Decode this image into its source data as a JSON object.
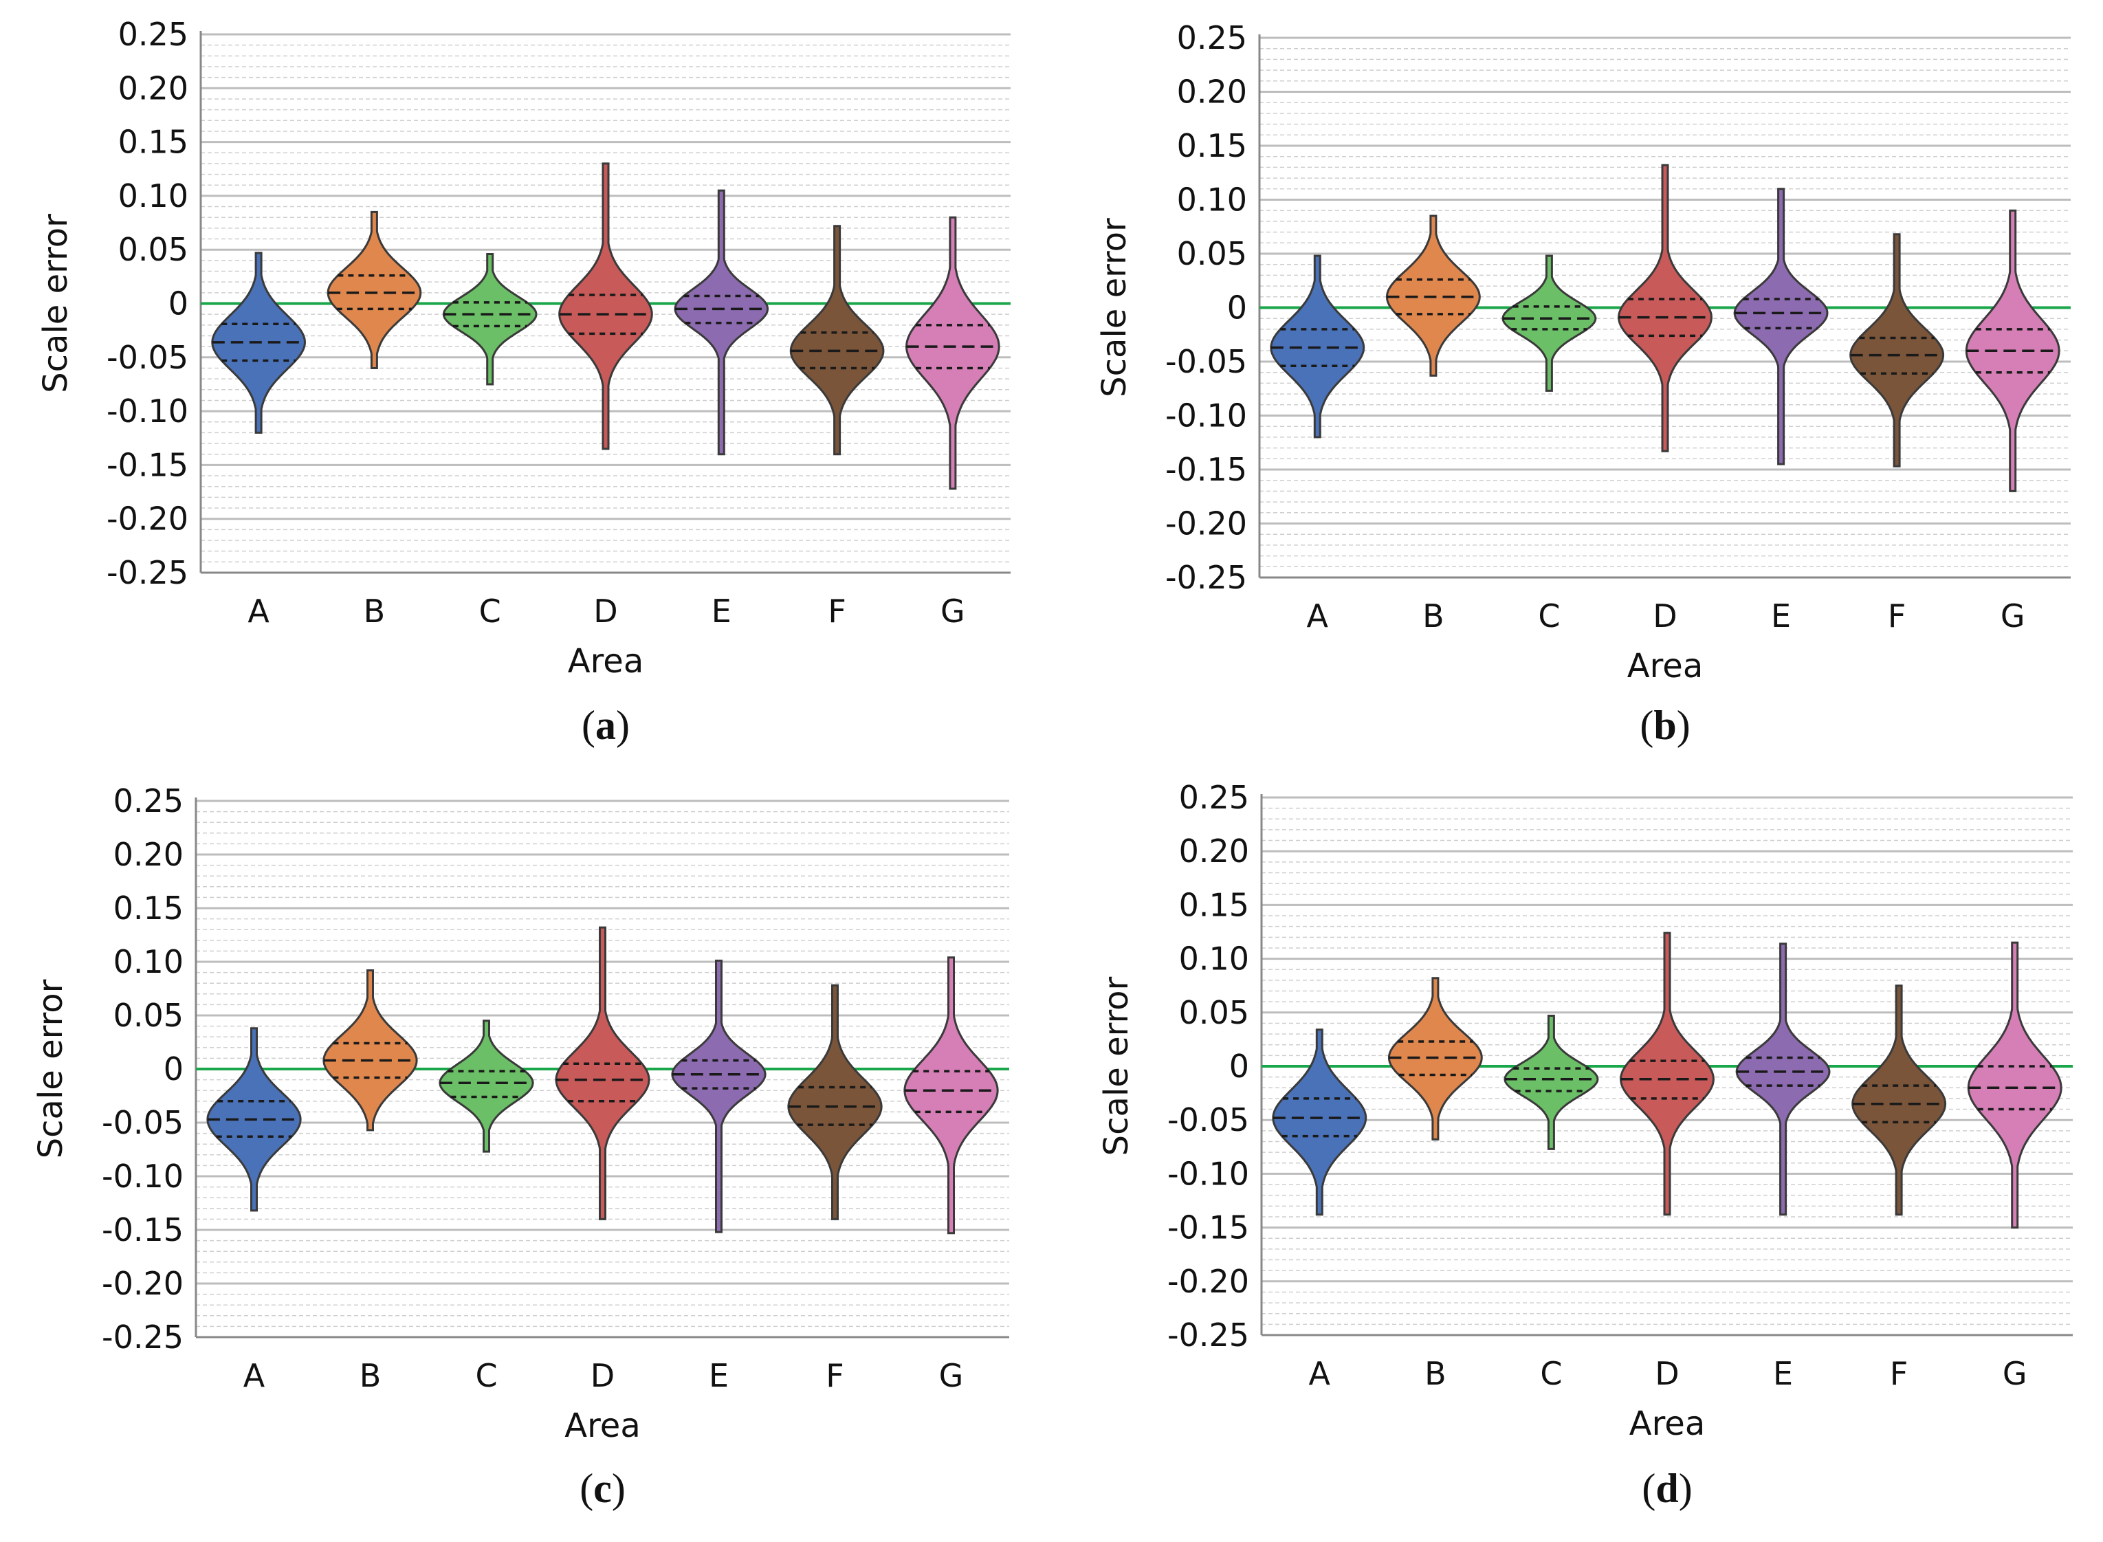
{
  "figure": {
    "zero_line_color": "#1aa64a",
    "colors": {
      "A": "#4a72b8",
      "B": "#e0874e",
      "C": "#6bbf66",
      "D": "#c85a5a",
      "E": "#8d6bb0",
      "F": "#7a553a",
      "G": "#d57fb6"
    }
  },
  "chart_data": [
    {
      "panel": "a",
      "panel_label": "a",
      "type": "violin",
      "xlabel": "Area",
      "ylabel": "Scale error",
      "ylim": [
        -0.25,
        0.25
      ],
      "yticks": [
        "0.25",
        "0.20",
        "0.15",
        "0.10",
        "0.05",
        "0",
        "-0.05",
        "-0.10",
        "-0.15",
        "-0.20",
        "-0.25"
      ],
      "categories": [
        "A",
        "B",
        "C",
        "D",
        "E",
        "F",
        "G"
      ],
      "series": [
        {
          "name": "A",
          "min": -0.12,
          "max": 0.047,
          "q1": -0.053,
          "median": -0.036,
          "q3": -0.019
        },
        {
          "name": "B",
          "min": -0.06,
          "max": 0.085,
          "q1": -0.005,
          "median": 0.01,
          "q3": 0.026
        },
        {
          "name": "C",
          "min": -0.075,
          "max": 0.046,
          "q1": -0.021,
          "median": -0.01,
          "q3": 0.001
        },
        {
          "name": "D",
          "min": -0.135,
          "max": 0.13,
          "q1": -0.028,
          "median": -0.01,
          "q3": 0.008
        },
        {
          "name": "E",
          "min": -0.14,
          "max": 0.105,
          "q1": -0.018,
          "median": -0.005,
          "q3": 0.007
        },
        {
          "name": "F",
          "min": -0.14,
          "max": 0.072,
          "q1": -0.06,
          "median": -0.044,
          "q3": -0.027
        },
        {
          "name": "G",
          "min": -0.172,
          "max": 0.08,
          "q1": -0.06,
          "median": -0.04,
          "q3": -0.02
        }
      ]
    },
    {
      "panel": "b",
      "panel_label": "b",
      "type": "violin",
      "xlabel": "Area",
      "ylabel": "Scale error",
      "ylim": [
        -0.25,
        0.25
      ],
      "yticks": [
        "0.25",
        "0.20",
        "0.15",
        "0.10",
        "0.05",
        "0",
        "-0.05",
        "-0.10",
        "-0.15",
        "-0.20",
        "-0.25"
      ],
      "categories": [
        "A",
        "B",
        "C",
        "D",
        "E",
        "F",
        "G"
      ],
      "series": [
        {
          "name": "A",
          "min": -0.12,
          "max": 0.048,
          "q1": -0.054,
          "median": -0.037,
          "q3": -0.02
        },
        {
          "name": "B",
          "min": -0.063,
          "max": 0.085,
          "q1": -0.006,
          "median": 0.01,
          "q3": 0.026
        },
        {
          "name": "C",
          "min": -0.077,
          "max": 0.048,
          "q1": -0.02,
          "median": -0.01,
          "q3": 0.001
        },
        {
          "name": "D",
          "min": -0.133,
          "max": 0.132,
          "q1": -0.026,
          "median": -0.009,
          "q3": 0.008
        },
        {
          "name": "E",
          "min": -0.145,
          "max": 0.11,
          "q1": -0.019,
          "median": -0.005,
          "q3": 0.008
        },
        {
          "name": "F",
          "min": -0.147,
          "max": 0.068,
          "q1": -0.061,
          "median": -0.044,
          "q3": -0.028
        },
        {
          "name": "G",
          "min": -0.17,
          "max": 0.09,
          "q1": -0.06,
          "median": -0.04,
          "q3": -0.02
        }
      ]
    },
    {
      "panel": "c",
      "panel_label": "c",
      "type": "violin",
      "xlabel": "Area",
      "ylabel": "Scale error",
      "ylim": [
        -0.25,
        0.25
      ],
      "yticks": [
        "0.25",
        "0.20",
        "0.15",
        "0.10",
        "0.05",
        "0",
        "-0.05",
        "-0.10",
        "-0.15",
        "-0.20",
        "-0.25"
      ],
      "categories": [
        "A",
        "B",
        "C",
        "D",
        "E",
        "F",
        "G"
      ],
      "series": [
        {
          "name": "A",
          "min": -0.132,
          "max": 0.038,
          "q1": -0.063,
          "median": -0.047,
          "q3": -0.03
        },
        {
          "name": "B",
          "min": -0.057,
          "max": 0.092,
          "q1": -0.008,
          "median": 0.008,
          "q3": 0.024
        },
        {
          "name": "C",
          "min": -0.077,
          "max": 0.045,
          "q1": -0.026,
          "median": -0.013,
          "q3": -0.002
        },
        {
          "name": "D",
          "min": -0.14,
          "max": 0.132,
          "q1": -0.03,
          "median": -0.01,
          "q3": 0.005
        },
        {
          "name": "E",
          "min": -0.152,
          "max": 0.101,
          "q1": -0.018,
          "median": -0.005,
          "q3": 0.008
        },
        {
          "name": "F",
          "min": -0.14,
          "max": 0.078,
          "q1": -0.052,
          "median": -0.035,
          "q3": -0.017
        },
        {
          "name": "G",
          "min": -0.153,
          "max": 0.104,
          "q1": -0.04,
          "median": -0.02,
          "q3": -0.002
        }
      ]
    },
    {
      "panel": "d",
      "panel_label": "d",
      "type": "violin",
      "xlabel": "Area",
      "ylabel": "Scale error",
      "ylim": [
        -0.25,
        0.25
      ],
      "yticks": [
        "0.25",
        "0.20",
        "0.15",
        "0.10",
        "0.05",
        "0",
        "-0.05",
        "-0.10",
        "-0.15",
        "-0.20",
        "-0.25"
      ],
      "categories": [
        "A",
        "B",
        "C",
        "D",
        "E",
        "F",
        "G"
      ],
      "series": [
        {
          "name": "A",
          "min": -0.138,
          "max": 0.034,
          "q1": -0.065,
          "median": -0.048,
          "q3": -0.03
        },
        {
          "name": "B",
          "min": -0.068,
          "max": 0.082,
          "q1": -0.008,
          "median": 0.008,
          "q3": 0.023
        },
        {
          "name": "C",
          "min": -0.077,
          "max": 0.047,
          "q1": -0.023,
          "median": -0.012,
          "q3": -0.002
        },
        {
          "name": "D",
          "min": -0.138,
          "max": 0.124,
          "q1": -0.03,
          "median": -0.012,
          "q3": 0.005
        },
        {
          "name": "E",
          "min": -0.138,
          "max": 0.114,
          "q1": -0.018,
          "median": -0.005,
          "q3": 0.008
        },
        {
          "name": "F",
          "min": -0.138,
          "max": 0.075,
          "q1": -0.052,
          "median": -0.035,
          "q3": -0.018
        },
        {
          "name": "G",
          "min": -0.15,
          "max": 0.115,
          "q1": -0.04,
          "median": -0.02,
          "q3": 0.0
        }
      ]
    }
  ]
}
